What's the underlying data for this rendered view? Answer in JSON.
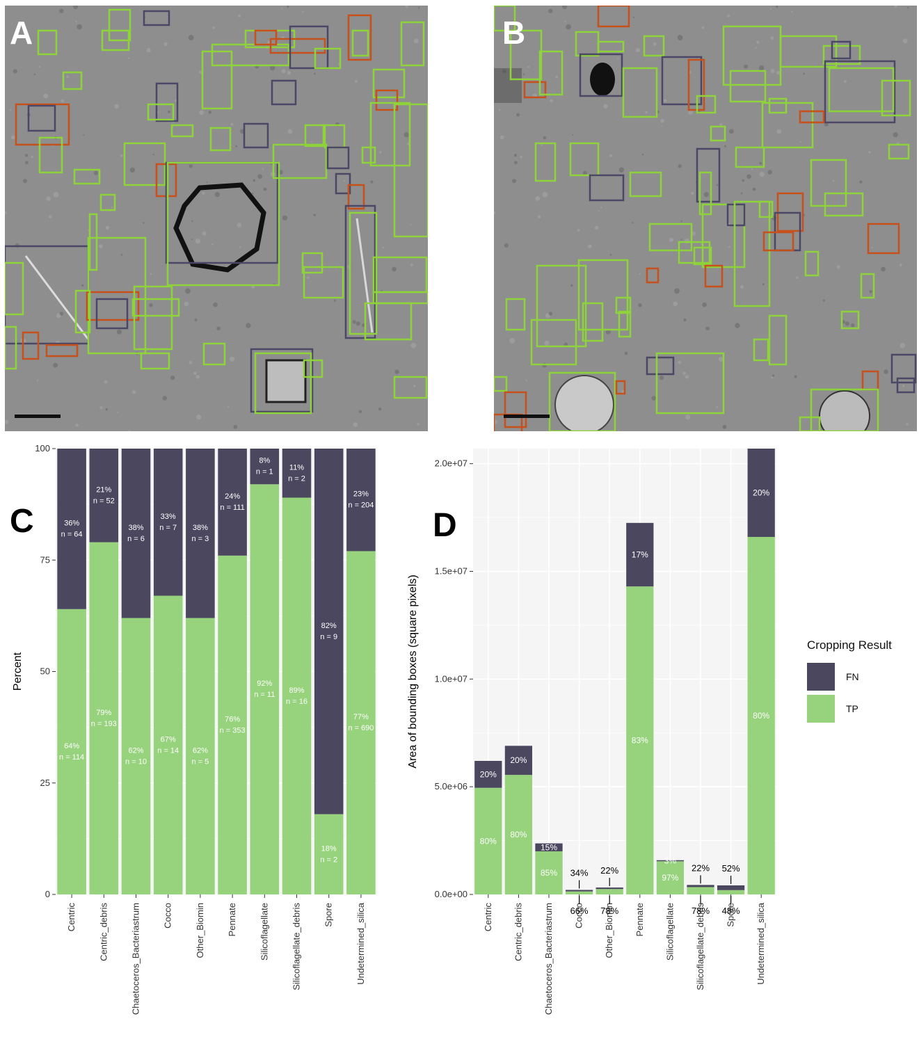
{
  "panels": {
    "a": {
      "letter": "A"
    },
    "b": {
      "letter": "B"
    },
    "c": {
      "letter": "C"
    },
    "d": {
      "letter": "D"
    }
  },
  "colors": {
    "FN": "#4a475f",
    "TP": "#97d27c",
    "box_green": "#8fd33a",
    "box_navy": "#4a4866",
    "box_orange": "#c8501a",
    "micrograph_bg": "#8e8e8e",
    "panel_bg": "#f5f5f5",
    "grid": "#ffffff"
  },
  "legend": {
    "title": "Cropping Result",
    "entries": [
      {
        "key": "FN",
        "label": "FN"
      },
      {
        "key": "TP",
        "label": "TP"
      }
    ]
  },
  "chart_data": [
    {
      "panel": "C",
      "type": "bar",
      "stacked": true,
      "ylabel": "Percent",
      "xlabel": "",
      "ylim": [
        0,
        100
      ],
      "yticks": [
        "0",
        "25",
        "50",
        "75",
        "100"
      ],
      "ytick_values": [
        0,
        25,
        50,
        75,
        100
      ],
      "categories": [
        "Centric",
        "Centric_debris",
        "Chaetoceros_Bacteriastrum",
        "Cocco",
        "Other_Biomin",
        "Pennate",
        "Silicoflagellate",
        "Silicoflagellate_debris",
        "Spore",
        "Undetermined_silica"
      ],
      "series": [
        {
          "name": "TP",
          "values": [
            64,
            79,
            62,
            67,
            62,
            76,
            92,
            89,
            18,
            77
          ],
          "pct_labels": [
            "64%",
            "79%",
            "62%",
            "67%",
            "62%",
            "76%",
            "92%",
            "89%",
            "18%",
            "77%"
          ],
          "n_labels": [
            "n = 114",
            "n = 193",
            "n = 10",
            "n = 14",
            "n = 5",
            "n = 353",
            "n = 11",
            "n = 16",
            "n = 2",
            "n = 690"
          ]
        },
        {
          "name": "FN",
          "values": [
            36,
            21,
            38,
            33,
            38,
            24,
            8,
            11,
            82,
            23
          ],
          "pct_labels": [
            "36%",
            "21%",
            "38%",
            "33%",
            "38%",
            "24%",
            "8%",
            "11%",
            "82%",
            "23%"
          ],
          "n_labels": [
            "n = 64",
            "n = 52",
            "n = 6",
            "n = 7",
            "n = 3",
            "n = 111",
            "n = 1",
            "n = 2",
            "n = 9",
            "n = 204"
          ]
        }
      ]
    },
    {
      "panel": "D",
      "type": "bar",
      "stacked": true,
      "ylabel": "Area of bounding boxes (square pixels)",
      "xlabel": "",
      "ylim": [
        0,
        20700000
      ],
      "yticks": [
        "0.0e+00",
        "5.0e+06",
        "1.0e+07",
        "1.5e+07",
        "2.0e+07"
      ],
      "ytick_values": [
        0,
        5000000,
        10000000,
        15000000,
        20000000
      ],
      "categories": [
        "Centric",
        "Centric_debris",
        "Chaetoceros_Bacteriastrum",
        "Cocco",
        "Other_Biomin",
        "Pennate",
        "Silicoflagellate",
        "Silicoflagellate_debris",
        "Spore",
        "Undetermined_silica"
      ],
      "series": [
        {
          "name": "TP",
          "values": [
            4950000,
            5550000,
            2000000,
            140000,
            250000,
            14300000,
            1540000,
            340000,
            200000,
            16600000
          ],
          "pct_labels": [
            "80%",
            "80%",
            "85%",
            "66%",
            "78%",
            "83%",
            "97%",
            "78%",
            "48%",
            "80%"
          ]
        },
        {
          "name": "FN",
          "values": [
            1250000,
            1350000,
            370000,
            70000,
            70000,
            2950000,
            50000,
            100000,
            220000,
            4100000
          ],
          "pct_labels": [
            "20%",
            "20%",
            "15%",
            "34%",
            "22%",
            "17%",
            "3%",
            "22%",
            "52%",
            "20%"
          ]
        }
      ],
      "outside_labels": [
        "Cocco",
        "Other_Biomin",
        "Silicoflagellate_debris",
        "Spore"
      ]
    }
  ]
}
